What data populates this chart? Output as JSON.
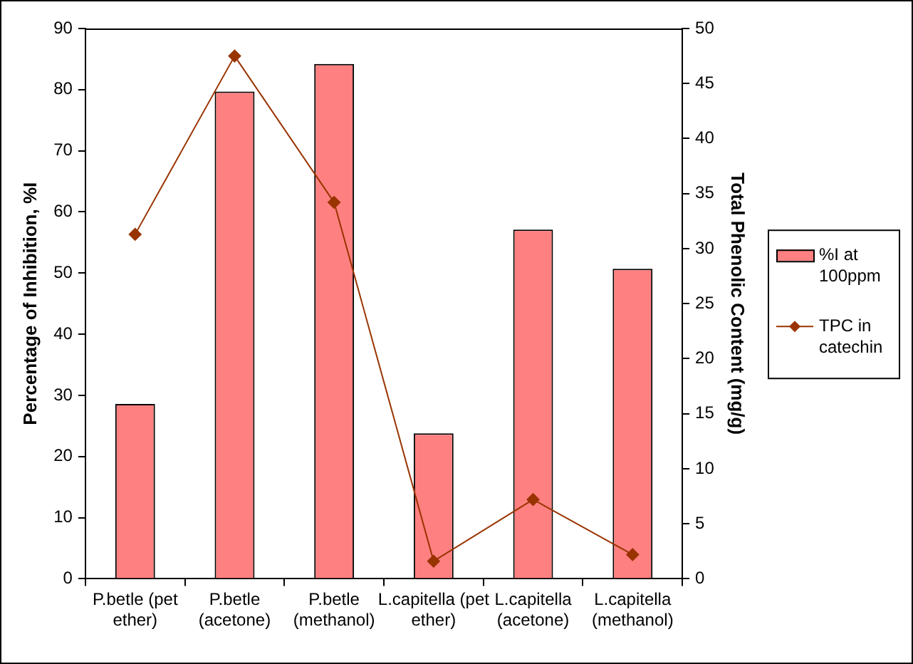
{
  "chart_data": {
    "type": "bar",
    "categories": [
      "P.betle (pet ether)",
      "P.betle (acetone)",
      "P.betle (methanol)",
      "L.capitella (pet ether)",
      "L.capitella (acetone)",
      "L.capitella (methanol)"
    ],
    "ylabel": "Percentage of Inhibition, %I",
    "y2label": "Total Phenolic Content (mg/g)",
    "series": [
      {
        "name": "%I at 100ppm",
        "color": "#ff8080",
        "values": [
          28.6,
          79.7,
          84.2,
          23.8,
          57.1,
          50.7
        ]
      },
      {
        "name": "TPC in catechin",
        "type": "line",
        "axis": "y2",
        "color": "#993300",
        "values": [
          31.3,
          47.5,
          34.2,
          1.6,
          7.2,
          2.2
        ]
      }
    ],
    "ylim": [
      0,
      90
    ],
    "yticks": [
      0,
      10,
      20,
      30,
      40,
      50,
      60,
      70,
      80,
      90
    ],
    "y2lim": [
      0,
      50
    ],
    "y2ticks": [
      0,
      5,
      10,
      15,
      20,
      25,
      30,
      35,
      40,
      45,
      50
    ],
    "grid": false,
    "legend": "right",
    "marker": "diamond"
  }
}
